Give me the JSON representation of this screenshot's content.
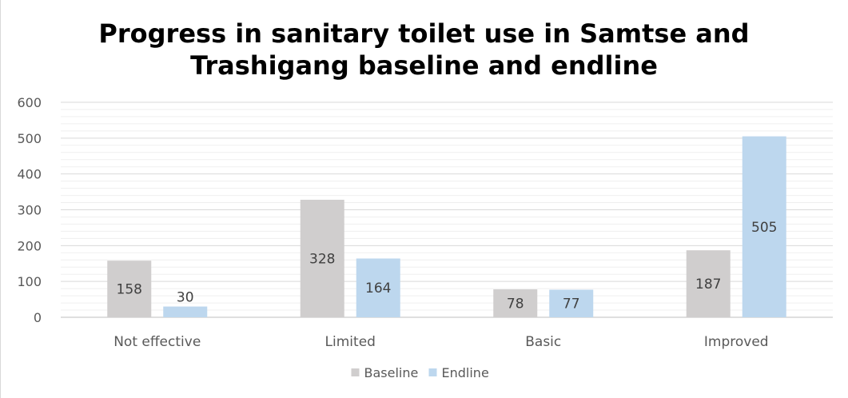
{
  "chart_data": {
    "type": "bar",
    "title_lines": [
      "Progress in sanitary toilet use in Samtse and",
      "Trashigang baseline and endline"
    ],
    "categories": [
      "Not effective",
      "Limited",
      "Basic",
      "Improved"
    ],
    "series": [
      {
        "name": "Baseline",
        "values": [
          158,
          328,
          78,
          187
        ],
        "color": "#d0cece"
      },
      {
        "name": "Endline",
        "values": [
          30,
          164,
          77,
          505
        ],
        "color": "#bdd7ee"
      }
    ],
    "ylim": [
      0,
      600
    ],
    "yticks": [
      0,
      100,
      200,
      300,
      400,
      500,
      600
    ],
    "grid": true,
    "legend_position": "bottom"
  }
}
